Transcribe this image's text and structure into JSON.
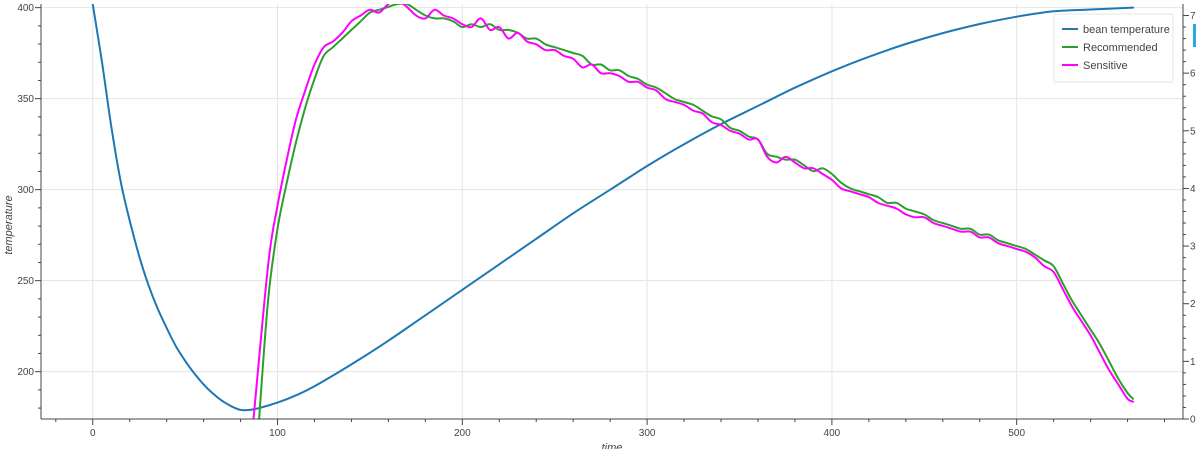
{
  "chart_data": {
    "type": "line",
    "xlabel": "time",
    "ylabel": "temperature",
    "xlim": [
      -28,
      590
    ],
    "ylim": [
      174,
      402
    ],
    "y2lim": [
      0,
      7.2
    ],
    "x_ticks": [
      0,
      100,
      200,
      300,
      400,
      500
    ],
    "y_ticks": [
      200,
      250,
      300,
      350,
      400
    ],
    "y2_ticks": [
      0,
      1,
      2,
      3,
      4,
      5,
      6,
      7
    ],
    "grid": true,
    "legend_position": "top-right",
    "series": [
      {
        "name": "bean temperature",
        "color": "#1f77b4",
        "axis": "left",
        "x": [
          0,
          5,
          10,
          15,
          20,
          25,
          30,
          35,
          40,
          45,
          50,
          55,
          60,
          65,
          70,
          75,
          80,
          85,
          90,
          100,
          110,
          120,
          140,
          160,
          180,
          200,
          220,
          240,
          260,
          280,
          300,
          320,
          340,
          360,
          380,
          400,
          420,
          440,
          460,
          480,
          500,
          520,
          540,
          563
        ],
        "y": [
          402,
          370,
          335,
          305,
          283,
          264,
          248,
          235,
          224,
          214,
          206,
          199,
          193,
          188,
          184,
          181,
          179,
          179,
          180,
          183,
          187,
          192,
          204,
          217,
          231,
          245,
          259,
          273,
          287,
          300,
          313,
          325,
          336,
          346,
          356,
          365,
          373,
          380,
          386,
          391,
          395,
          398,
          399,
          400
        ]
      },
      {
        "name": "Recommended",
        "color": "#2ca02c",
        "axis": "right",
        "x": [
          90,
          95,
          100,
          105,
          110,
          115,
          120,
          125,
          130,
          135,
          140,
          145,
          150,
          155,
          160,
          165,
          170,
          175,
          180,
          185,
          190,
          195,
          200,
          205,
          210,
          215,
          220,
          225,
          230,
          235,
          240,
          245,
          250,
          255,
          260,
          265,
          270,
          275,
          280,
          285,
          290,
          295,
          300,
          305,
          310,
          315,
          320,
          325,
          330,
          335,
          340,
          345,
          350,
          355,
          360,
          365,
          370,
          375,
          380,
          385,
          390,
          395,
          400,
          405,
          410,
          415,
          420,
          425,
          430,
          435,
          440,
          445,
          450,
          455,
          460,
          465,
          470,
          475,
          480,
          485,
          490,
          495,
          500,
          505,
          510,
          515,
          520,
          525,
          530,
          535,
          540,
          545,
          550,
          555,
          560,
          563
        ],
        "y": [
          0,
          2.1,
          3.3,
          4.1,
          4.8,
          5.4,
          5.9,
          6.3,
          6.45,
          6.6,
          6.75,
          6.9,
          7.05,
          7.1,
          7.15,
          7.2,
          7.2,
          7.1,
          7.0,
          6.95,
          6.95,
          6.9,
          6.8,
          6.85,
          6.8,
          6.85,
          6.75,
          6.75,
          6.7,
          6.6,
          6.6,
          6.5,
          6.45,
          6.4,
          6.35,
          6.3,
          6.15,
          6.15,
          6.05,
          6.05,
          5.95,
          5.9,
          5.8,
          5.75,
          5.65,
          5.55,
          5.5,
          5.45,
          5.35,
          5.25,
          5.2,
          5.05,
          5.0,
          4.9,
          4.85,
          4.6,
          4.55,
          4.5,
          4.5,
          4.4,
          4.3,
          4.35,
          4.25,
          4.1,
          4.0,
          3.95,
          3.9,
          3.85,
          3.75,
          3.75,
          3.65,
          3.6,
          3.55,
          3.45,
          3.4,
          3.35,
          3.3,
          3.3,
          3.2,
          3.2,
          3.1,
          3.05,
          3.0,
          2.95,
          2.85,
          2.75,
          2.65,
          2.35,
          2.05,
          1.8,
          1.55,
          1.3,
          1.0,
          0.7,
          0.45,
          0.35
        ]
      },
      {
        "name": "Sensitive",
        "color": "#ff00ff",
        "axis": "right",
        "x": [
          87,
          95,
          100,
          105,
          110,
          115,
          120,
          125,
          130,
          135,
          140,
          145,
          150,
          155,
          160,
          165,
          170,
          175,
          180,
          185,
          190,
          195,
          200,
          205,
          210,
          215,
          220,
          225,
          230,
          235,
          240,
          245,
          250,
          255,
          260,
          265,
          270,
          275,
          280,
          285,
          290,
          295,
          300,
          305,
          310,
          315,
          320,
          325,
          330,
          335,
          340,
          345,
          350,
          355,
          360,
          365,
          370,
          375,
          380,
          385,
          390,
          395,
          400,
          405,
          410,
          415,
          420,
          425,
          430,
          435,
          440,
          445,
          450,
          455,
          460,
          465,
          470,
          475,
          480,
          485,
          490,
          495,
          500,
          505,
          510,
          515,
          520,
          525,
          530,
          535,
          540,
          545,
          550,
          555,
          560,
          563
        ],
        "y": [
          0,
          2.7,
          3.7,
          4.5,
          5.2,
          5.7,
          6.15,
          6.45,
          6.55,
          6.7,
          6.9,
          7.0,
          7.1,
          7.05,
          7.2,
          7.25,
          7.15,
          7.0,
          6.95,
          7.1,
          7.0,
          6.95,
          6.85,
          6.8,
          6.95,
          6.75,
          6.8,
          6.6,
          6.7,
          6.55,
          6.5,
          6.4,
          6.4,
          6.3,
          6.25,
          6.1,
          6.15,
          6.0,
          6.0,
          5.95,
          5.85,
          5.85,
          5.75,
          5.7,
          5.55,
          5.5,
          5.45,
          5.35,
          5.3,
          5.15,
          5.1,
          5.0,
          4.95,
          4.85,
          4.85,
          4.55,
          4.45,
          4.55,
          4.45,
          4.35,
          4.35,
          4.25,
          4.15,
          4.0,
          3.95,
          3.9,
          3.85,
          3.75,
          3.7,
          3.65,
          3.55,
          3.5,
          3.5,
          3.4,
          3.35,
          3.3,
          3.25,
          3.25,
          3.15,
          3.15,
          3.05,
          3.0,
          2.95,
          2.9,
          2.8,
          2.65,
          2.55,
          2.25,
          1.95,
          1.7,
          1.45,
          1.15,
          0.85,
          0.6,
          0.35,
          0.3
        ]
      }
    ]
  },
  "legend": {
    "items": [
      {
        "label": "bean temperature",
        "color": "#1f77b4"
      },
      {
        "label": "Recommended",
        "color": "#2ca02c"
      },
      {
        "label": "Sensitive",
        "color": "#ff00ff"
      }
    ]
  }
}
